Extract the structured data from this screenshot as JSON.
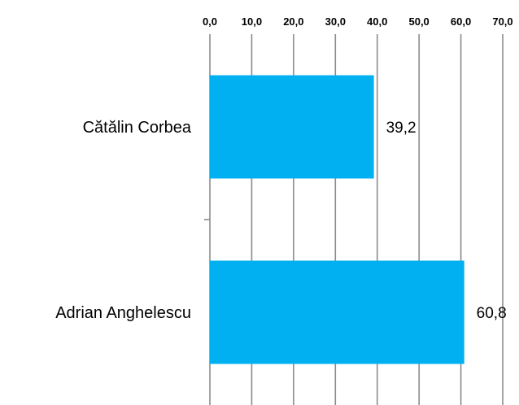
{
  "chart_data": {
    "type": "bar",
    "orientation": "horizontal",
    "categories": [
      "Cătălin Corbea",
      "Adrian Anghelescu"
    ],
    "values": [
      39.2,
      60.8
    ],
    "value_labels": [
      "39,2",
      "60,8"
    ],
    "x_ticks": [
      "0,0",
      "10,0",
      "20,0",
      "30,0",
      "40,0",
      "50,0",
      "60,0",
      "70,0"
    ],
    "xlim": [
      0,
      70
    ],
    "x_axis_position": "top",
    "grid": "vertical",
    "bar_color": "#00B0F0",
    "grid_color": "#8C8C8C",
    "title": "",
    "xlabel": "",
    "ylabel": ""
  }
}
